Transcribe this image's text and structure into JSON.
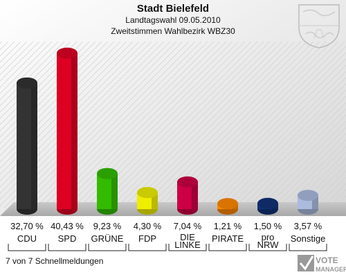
{
  "header": {
    "title": "Stadt Bielefeld",
    "subtitle1": "Landtagswahl 09.05.2010",
    "subtitle2": "Zweitstimmen Wahlbezirk WBZ30"
  },
  "footer": {
    "note": "7 von 7 Schnellmeldungen"
  },
  "logo": {
    "text_top": "VOTE",
    "text_bottom": "MANAGER",
    "icon": "checkmark-logo-icon"
  },
  "crest": {
    "icon": "nrw-coat-of-arms-icon"
  },
  "colors": {
    "background_floor": "#b4b4b4",
    "wall": "#dcdcdc"
  },
  "chart_data": {
    "type": "bar",
    "categories": [
      "CDU",
      "SPD",
      "GRÜNE",
      "FDP",
      "DIE LINKE",
      "PIRATE",
      "pro NRW",
      "Sonstige"
    ],
    "category_lines": [
      [
        "CDU"
      ],
      [
        "SPD"
      ],
      [
        "GRÜNE"
      ],
      [
        "FDP"
      ],
      [
        "DIE",
        "LINKE"
      ],
      [
        "PIRATE"
      ],
      [
        "pro",
        "NRW"
      ],
      [
        "Sonstige"
      ]
    ],
    "values": [
      32.7,
      40.43,
      9.23,
      4.3,
      7.04,
      1.21,
      1.5,
      3.57
    ],
    "value_labels": [
      "32,70 %",
      "40,43 %",
      "9,23 %",
      "4,30 %",
      "7,04 %",
      "1,21 %",
      "1,50 %",
      "3,57 %"
    ],
    "colors": [
      "#333333",
      "#dd0022",
      "#33bb00",
      "#eeee00",
      "#cc0044",
      "#ff8800",
      "#113377",
      "#aabbdd"
    ],
    "ylim": [
      0,
      42
    ]
  }
}
